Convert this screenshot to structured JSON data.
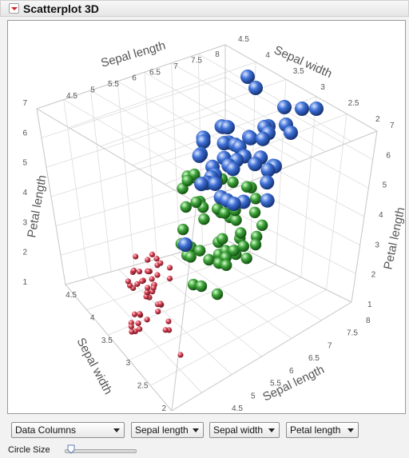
{
  "window": {
    "title": "Scatterplot 3D"
  },
  "plot": {
    "top_axis_label_left": "Sepal length",
    "top_axis_label_right": "Sepal width",
    "left_axis_label": "Petal length",
    "right_axis_label": "Petal length",
    "bottom_axis_label_left": "Sepal width",
    "bottom_axis_label_right": "Sepal length",
    "top_left_ticks": [
      "4.5",
      "5",
      "5.5",
      "6",
      "6.5",
      "7",
      "7.5",
      "8"
    ],
    "top_right_ticks": [
      "4.5",
      "4",
      "3.5",
      "3",
      "2.5",
      "2"
    ],
    "left_z_ticks": [
      "7",
      "6",
      "5",
      "4",
      "3",
      "2",
      "1"
    ],
    "right_z_ticks": [
      "7",
      "6",
      "5",
      "4",
      "3",
      "2",
      "1"
    ],
    "bottom_left_ticks": [
      "4.5",
      "4",
      "3.5",
      "3",
      "2.5",
      "2"
    ],
    "bottom_right_ticks": [
      "8",
      "7.5",
      "7",
      "6.5",
      "6",
      "5.5",
      "5",
      "4.5"
    ],
    "series_colors": {
      "setosa": "#d94355",
      "versicolor": "#3ea33a",
      "virginica": "#3d6fd6"
    }
  },
  "controls": {
    "data_columns_label": "Data Columns",
    "x_column": "Sepal length",
    "y_column": "Sepal width",
    "z_column": "Petal length",
    "circle_size_label": "Circle Size"
  }
}
